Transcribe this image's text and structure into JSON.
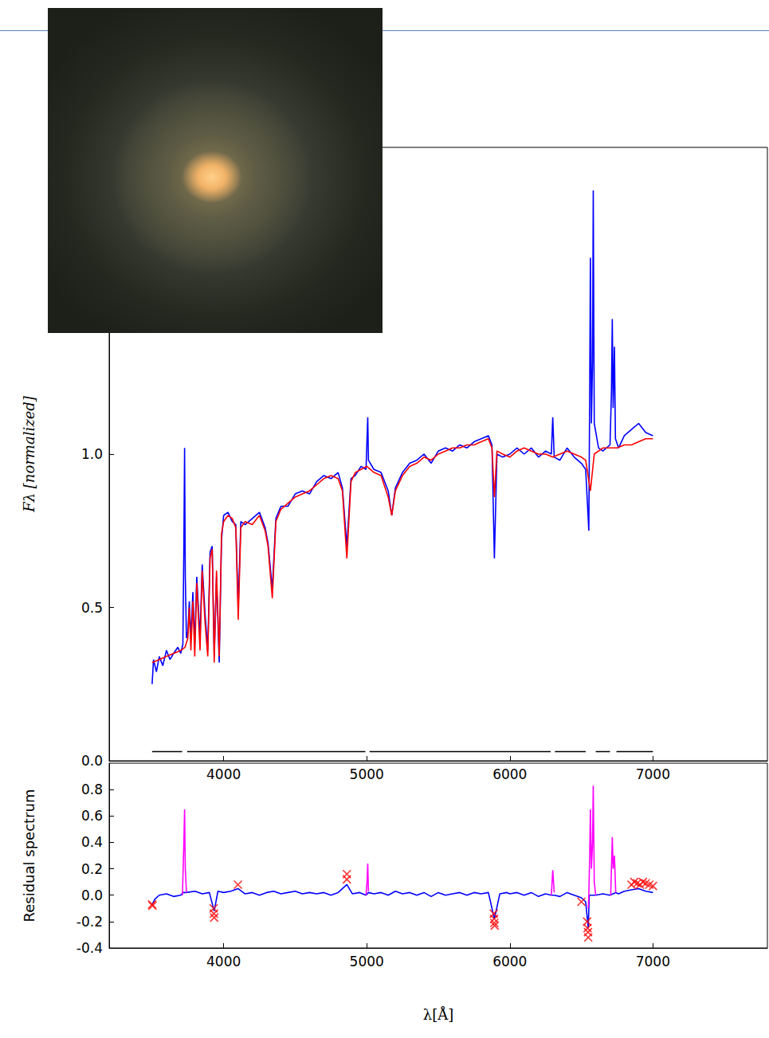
{
  "chart_data": [
    {
      "type": "line",
      "ylabel": "Fλ [normalized]",
      "xlim": [
        3200,
        7800
      ],
      "xticks": [
        4000,
        5000,
        6000,
        7000
      ],
      "ylim": [
        0,
        2.0
      ],
      "yticks": [
        {
          "value": 0,
          "label": "0.0"
        },
        0.5,
        {
          "value": 1,
          "label": "1.0"
        }
      ],
      "series": [
        {
          "color": "#0000ff",
          "x": [
            3500,
            3510,
            3530,
            3550,
            3575,
            3600,
            3625,
            3650,
            3680,
            3700,
            3715,
            3722,
            3727,
            3732,
            3740,
            3750,
            3760,
            3771,
            3785,
            3798,
            3812,
            3835,
            3850,
            3870,
            3889,
            3905,
            3920,
            3934,
            3950,
            3969,
            3985,
            4000,
            4030,
            4060,
            4085,
            4102,
            4120,
            4150,
            4200,
            4250,
            4290,
            4310,
            4340,
            4365,
            4400,
            4450,
            4500,
            4550,
            4600,
            4650,
            4700,
            4750,
            4800,
            4830,
            4861,
            4890,
            4920,
            4960,
            4995,
            5002,
            5007,
            5012,
            5050,
            5100,
            5150,
            5175,
            5200,
            5250,
            5300,
            5350,
            5400,
            5450,
            5500,
            5550,
            5600,
            5650,
            5700,
            5750,
            5800,
            5850,
            5875,
            5892,
            5910,
            5950,
            6000,
            6050,
            6100,
            6150,
            6200,
            6250,
            6290,
            6300,
            6310,
            6350,
            6400,
            6450,
            6500,
            6530,
            6552,
            6558,
            6563,
            6570,
            6578,
            6583,
            6590,
            6620,
            6650,
            6700,
            6710,
            6716,
            6722,
            6731,
            6738,
            6760,
            6800,
            6850,
            6900,
            6950,
            7000
          ],
          "values": [
            0.25,
            0.33,
            0.29,
            0.34,
            0.31,
            0.36,
            0.33,
            0.35,
            0.37,
            0.35,
            0.38,
            0.7,
            1.02,
            0.6,
            0.4,
            0.42,
            0.52,
            0.4,
            0.55,
            0.38,
            0.6,
            0.4,
            0.64,
            0.48,
            0.36,
            0.68,
            0.7,
            0.34,
            0.6,
            0.32,
            0.72,
            0.8,
            0.81,
            0.78,
            0.77,
            0.5,
            0.78,
            0.77,
            0.79,
            0.81,
            0.76,
            0.71,
            0.56,
            0.79,
            0.83,
            0.83,
            0.87,
            0.88,
            0.87,
            0.91,
            0.93,
            0.92,
            0.94,
            0.89,
            0.7,
            0.92,
            0.93,
            0.96,
            0.95,
            1.05,
            1.12,
            0.98,
            0.95,
            0.94,
            0.88,
            0.8,
            0.89,
            0.94,
            0.97,
            0.98,
            1.0,
            0.97,
            1.01,
            1.02,
            1.01,
            1.03,
            1.02,
            1.04,
            1.05,
            1.06,
            1.03,
            0.66,
            1.0,
            0.99,
            1.0,
            1.02,
            1.0,
            1.02,
            0.99,
            1.01,
            1.0,
            1.12,
            0.99,
            0.98,
            1.02,
            0.99,
            0.97,
            0.95,
            0.75,
            1.2,
            1.64,
            1.1,
            1.3,
            1.86,
            1.1,
            1.02,
            1.01,
            1.03,
            1.2,
            1.44,
            1.15,
            1.35,
            1.05,
            1.02,
            1.06,
            1.08,
            1.1,
            1.07,
            1.06
          ]
        },
        {
          "color": "#ff0000",
          "x": [
            3500,
            3550,
            3600,
            3650,
            3700,
            3730,
            3750,
            3760,
            3771,
            3785,
            3798,
            3812,
            3835,
            3850,
            3870,
            3889,
            3905,
            3920,
            3934,
            3950,
            3969,
            3985,
            4000,
            4030,
            4060,
            4085,
            4102,
            4120,
            4150,
            4200,
            4250,
            4290,
            4310,
            4340,
            4365,
            4400,
            4450,
            4500,
            4550,
            4600,
            4650,
            4700,
            4750,
            4800,
            4830,
            4861,
            4890,
            4920,
            4960,
            5000,
            5050,
            5100,
            5150,
            5175,
            5200,
            5250,
            5300,
            5350,
            5400,
            5450,
            5500,
            5550,
            5600,
            5650,
            5700,
            5750,
            5800,
            5850,
            5875,
            5892,
            5910,
            5950,
            6000,
            6050,
            6100,
            6150,
            6200,
            6250,
            6300,
            6350,
            6400,
            6450,
            6500,
            6530,
            6563,
            6590,
            6650,
            6700,
            6750,
            6800,
            6850,
            6900,
            6950,
            7000
          ],
          "values": [
            0.32,
            0.33,
            0.34,
            0.35,
            0.36,
            0.37,
            0.4,
            0.5,
            0.36,
            0.52,
            0.34,
            0.58,
            0.36,
            0.62,
            0.45,
            0.34,
            0.66,
            0.69,
            0.32,
            0.62,
            0.34,
            0.74,
            0.78,
            0.8,
            0.79,
            0.76,
            0.46,
            0.76,
            0.78,
            0.77,
            0.8,
            0.75,
            0.7,
            0.53,
            0.78,
            0.82,
            0.84,
            0.86,
            0.87,
            0.88,
            0.9,
            0.92,
            0.93,
            0.92,
            0.88,
            0.66,
            0.91,
            0.94,
            0.95,
            0.96,
            0.94,
            0.93,
            0.86,
            0.8,
            0.88,
            0.93,
            0.96,
            0.97,
            0.99,
            0.98,
            1.0,
            1.01,
            1.02,
            1.02,
            1.03,
            1.03,
            1.04,
            1.05,
            1.02,
            0.86,
            1.01,
            1.0,
            0.99,
            1.01,
            1.02,
            1.01,
            1.0,
            1.0,
            0.99,
            1.0,
            1.01,
            1.0,
            0.99,
            0.98,
            0.88,
            1.0,
            1.02,
            1.02,
            1.02,
            1.03,
            1.03,
            1.04,
            1.05,
            1.05
          ]
        },
        {
          "color": "#000000",
          "x": [
            3500,
            3710,
            3727,
            3745,
            4990,
            5007,
            5020,
            6285,
            6300,
            6315,
            6530,
            6565,
            6600,
            6700,
            6722,
            6745,
            7000
          ],
          "values": [
            0.03,
            0.03,
            null,
            0.03,
            0.03,
            null,
            0.03,
            0.03,
            null,
            0.03,
            0.03,
            null,
            0.03,
            0.03,
            null,
            0.03,
            0.03
          ]
        }
      ]
    },
    {
      "type": "line",
      "xlabel": "λ[Å]",
      "ylabel": "Residual spectrum",
      "xlim": [
        3200,
        7800
      ],
      "xticks": [
        4000,
        5000,
        6000,
        7000
      ],
      "ylim": [
        -0.4,
        1.0
      ],
      "yticks": [
        -0.4,
        -0.2,
        {
          "value": 0,
          "label": "0.0"
        },
        0.2,
        0.4,
        0.6,
        0.8
      ],
      "series": [
        {
          "color": "#0000ff",
          "x": [
            3500,
            3520,
            3550,
            3600,
            3650,
            3700,
            3715,
            3740,
            3800,
            3850,
            3900,
            3934,
            3960,
            4000,
            4050,
            4100,
            4150,
            4200,
            4250,
            4300,
            4350,
            4400,
            4450,
            4500,
            4550,
            4600,
            4650,
            4700,
            4750,
            4800,
            4861,
            4900,
            4950,
            4995,
            5012,
            5050,
            5100,
            5150,
            5200,
            5250,
            5300,
            5350,
            5400,
            5450,
            5500,
            5550,
            5600,
            5650,
            5700,
            5750,
            5800,
            5850,
            5892,
            5930,
            5980,
            6000,
            6050,
            6100,
            6150,
            6200,
            6250,
            6290,
            6310,
            6350,
            6400,
            6450,
            6500,
            6530,
            6548,
            6555,
            6600,
            6650,
            6700,
            6740,
            6760,
            6800,
            6850,
            6900,
            6950,
            7000
          ],
          "values": [
            -0.07,
            -0.03,
            0.0,
            0.01,
            -0.01,
            0.0,
            0.02,
            0.02,
            0.03,
            0.01,
            0.02,
            -0.12,
            0.03,
            0.02,
            0.03,
            0.05,
            0.01,
            0.02,
            0.0,
            0.02,
            0.03,
            0.01,
            0.02,
            0.03,
            0.01,
            0.02,
            0.01,
            0.02,
            0.0,
            0.02,
            0.08,
            0.01,
            0.02,
            0.0,
            0.02,
            0.01,
            0.02,
            0.0,
            0.03,
            0.01,
            0.02,
            0.0,
            0.02,
            -0.01,
            0.02,
            0.0,
            0.01,
            0.02,
            0.0,
            0.02,
            0.01,
            0.02,
            -0.18,
            0.01,
            0.02,
            0.01,
            0.02,
            0.0,
            0.02,
            -0.01,
            0.01,
            0.0,
            0.0,
            -0.01,
            0.02,
            0.0,
            -0.02,
            -0.05,
            -0.25,
            0.0,
            0.0,
            0.01,
            0.0,
            0.02,
            0.01,
            0.03,
            0.04,
            0.05,
            0.03,
            0.02
          ]
        },
        {
          "color": "#ff00ff",
          "x": [
            3712,
            3722,
            3727,
            3732,
            3740,
            3745,
            4995,
            5002,
            5007,
            5012,
            5020,
            6290,
            6300,
            6310,
            6320,
            6548,
            6552,
            6558,
            6563,
            6570,
            6578,
            6583,
            6590,
            6600,
            6650,
            6705,
            6716,
            6722,
            6731,
            6740
          ],
          "values": [
            0.0,
            0.4,
            0.65,
            0.2,
            0.02,
            null,
            0.0,
            0.1,
            0.24,
            0.03,
            null,
            0.0,
            0.19,
            0.02,
            null,
            -0.1,
            0.0,
            0.3,
            0.65,
            0.2,
            0.4,
            0.83,
            0.1,
            0.0,
            null,
            0.0,
            0.44,
            0.2,
            0.3,
            0.02
          ]
        },
        {
          "type": "scatter",
          "marker": "x",
          "color": "#ff0000",
          "x": [
            3500,
            3503,
            3930,
            3932,
            3934,
            4100,
            4861,
            4861,
            5888,
            5890,
            5892,
            5894,
            6500,
            6540,
            6543,
            6546,
            6548,
            6850,
            6870,
            6890,
            6910,
            6930,
            6950,
            6975,
            7000
          ],
          "values": [
            -0.07,
            -0.08,
            -0.1,
            -0.14,
            -0.17,
            0.08,
            0.12,
            0.16,
            -0.14,
            -0.18,
            -0.21,
            -0.23,
            -0.05,
            -0.2,
            -0.25,
            -0.28,
            -0.32,
            0.08,
            0.1,
            0.09,
            0.08,
            0.1,
            0.09,
            0.08,
            0.07
          ]
        }
      ]
    }
  ]
}
